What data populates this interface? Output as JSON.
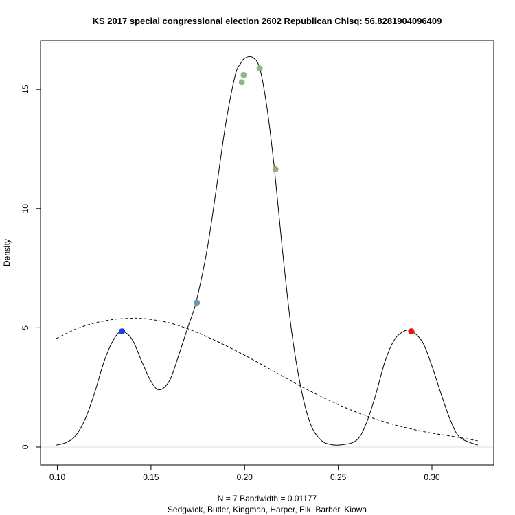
{
  "chart_data": {
    "type": "line",
    "title": "KS 2017 special congressional election 2602 Republican Chisq: 56.8281904096409",
    "xlabel_line1": "N = 7   Bandwidth = 0.01177",
    "xlabel_line2": "Sedgwick, Butler, Kingman, Harper, Elk, Barber, Kiowa",
    "ylabel": "Density",
    "xlim": [
      0.091,
      0.333
    ],
    "ylim": [
      -0.75,
      17.05
    ],
    "x_ticks": [
      {
        "value": 0.1,
        "label": "0.10"
      },
      {
        "value": 0.15,
        "label": "0.15"
      },
      {
        "value": 0.2,
        "label": "0.20"
      },
      {
        "value": 0.25,
        "label": "0.25"
      },
      {
        "value": 0.3,
        "label": "0.30"
      }
    ],
    "y_ticks": [
      {
        "value": 0,
        "label": "0"
      },
      {
        "value": 5,
        "label": "5"
      },
      {
        "value": 10,
        "label": "10"
      },
      {
        "value": 15,
        "label": "15"
      }
    ],
    "grid": false,
    "series": [
      {
        "style": "solid",
        "x": [
          0.0995,
          0.105,
          0.11,
          0.115,
          0.12,
          0.125,
          0.13,
          0.1345,
          0.14,
          0.145,
          0.15,
          0.1545,
          0.16,
          0.165,
          0.17,
          0.174,
          0.18,
          0.185,
          0.19,
          0.195,
          0.198,
          0.2,
          0.204,
          0.208,
          0.212,
          0.216,
          0.22,
          0.225,
          0.23,
          0.235,
          0.24,
          0.245,
          0.2525,
          0.26,
          0.265,
          0.27,
          0.275,
          0.28,
          0.285,
          0.289,
          0.295,
          0.3,
          0.305,
          0.31,
          0.315,
          0.3245
        ],
        "y": [
          0.08,
          0.2,
          0.5,
          1.2,
          2.3,
          3.6,
          4.5,
          4.85,
          4.5,
          3.6,
          2.75,
          2.4,
          2.8,
          3.9,
          5.1,
          6.05,
          8.3,
          10.9,
          13.6,
          15.6,
          16.1,
          16.3,
          16.35,
          15.9,
          14.2,
          11.6,
          8.4,
          4.9,
          2.5,
          1.0,
          0.35,
          0.12,
          0.1,
          0.3,
          1.0,
          2.2,
          3.6,
          4.5,
          4.85,
          4.86,
          4.4,
          3.4,
          2.2,
          1.1,
          0.4,
          0.08
        ]
      },
      {
        "style": "dashed",
        "x": [
          0.0995,
          0.11,
          0.12,
          0.13,
          0.14,
          0.143,
          0.15,
          0.16,
          0.17,
          0.18,
          0.19,
          0.2,
          0.21,
          0.22,
          0.23,
          0.24,
          0.25,
          0.26,
          0.27,
          0.28,
          0.29,
          0.3,
          0.31,
          0.3245
        ],
        "y": [
          4.55,
          4.95,
          5.2,
          5.35,
          5.4,
          5.4,
          5.35,
          5.2,
          4.95,
          4.62,
          4.25,
          3.85,
          3.42,
          2.98,
          2.55,
          2.15,
          1.78,
          1.45,
          1.17,
          0.93,
          0.74,
          0.58,
          0.46,
          0.26
        ]
      }
    ],
    "points": [
      {
        "x": 0.1345,
        "y": 4.85,
        "color": "#1f3fe0"
      },
      {
        "x": 0.1745,
        "y": 6.05,
        "color": "#6a9aad"
      },
      {
        "x": 0.1985,
        "y": 15.3,
        "color": "#8fb88a"
      },
      {
        "x": 0.1995,
        "y": 15.6,
        "color": "#8fb88a"
      },
      {
        "x": 0.208,
        "y": 15.88,
        "color": "#8fb88a"
      },
      {
        "x": 0.2165,
        "y": 11.65,
        "color": "#9aaa7a"
      },
      {
        "x": 0.289,
        "y": 4.85,
        "color": "#ee1111"
      }
    ],
    "baseline_color": "#dddddd",
    "line_color": "#000000"
  }
}
